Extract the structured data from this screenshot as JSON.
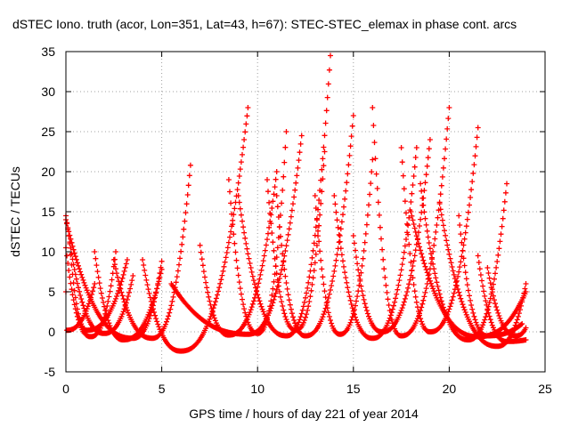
{
  "chart_data": {
    "type": "scatter",
    "title": "dSTEC Iono. truth (acor, Lon=351, Lat=43, h=67): STEC-STEC_elemax in phase cont. arcs",
    "xlabel": "GPS time / hours of day 221 of year 2014",
    "ylabel": "dSTEC  / TECUs",
    "xlim": [
      0,
      25
    ],
    "ylim": [
      -5,
      35
    ],
    "x_ticks": [
      "0",
      "5",
      "10",
      "15",
      "20",
      "25"
    ],
    "y_ticks": [
      "-5",
      "0",
      "5",
      "10",
      "15",
      "20",
      "25",
      "30",
      "35"
    ],
    "grid": true,
    "marker": "+",
    "color": "#ff0000",
    "arcs": [
      {
        "start": 0.0,
        "end": 1.5,
        "min_x": 0.05,
        "min_y": 0.2,
        "peak_left": 5.0,
        "peak_right": 6.0
      },
      {
        "start": 0.0,
        "end": 2.6,
        "min_x": 1.3,
        "min_y": -0.6,
        "peak_left": 10.5,
        "peak_right": 10.0
      },
      {
        "start": 0.2,
        "end": 3.2,
        "min_x": 1.1,
        "min_y": 0.2,
        "peak_left": 11.0,
        "peak_right": 9.0
      },
      {
        "start": 0.0,
        "end": 3.5,
        "min_x": 2.0,
        "min_y": -0.2,
        "peak_left": 14.5,
        "peak_right": 7.0
      },
      {
        "start": 0.0,
        "end": 5.0,
        "min_x": 3.5,
        "min_y": -0.8,
        "peak_left": 14.0,
        "peak_right": 8.8
      },
      {
        "start": 1.5,
        "end": 5.0,
        "min_x": 3.0,
        "min_y": -1.0,
        "peak_left": 10.0,
        "peak_right": 7.8
      },
      {
        "start": 2.5,
        "end": 6.5,
        "min_x": 4.5,
        "min_y": -0.8,
        "peak_left": 9.0,
        "peak_right": 20.8
      },
      {
        "start": 4.0,
        "end": 9.5,
        "min_x": 6.0,
        "min_y": -2.4,
        "peak_left": 9.0,
        "peak_right": 28.0
      },
      {
        "start": 5.5,
        "end": 12.3,
        "min_x": 9.5,
        "min_y": -0.3,
        "peak_left": 6.0,
        "peak_right": 24.5
      },
      {
        "start": 7.0,
        "end": 11.0,
        "min_x": 8.5,
        "min_y": -0.4,
        "peak_left": 10.8,
        "peak_right": 20.0
      },
      {
        "start": 8.5,
        "end": 11.5,
        "min_x": 10.0,
        "min_y": -0.2,
        "peak_left": 19.0,
        "peak_right": 25.0
      },
      {
        "start": 9.0,
        "end": 13.8,
        "min_x": 11.5,
        "min_y": -0.5,
        "peak_left": 17.0,
        "peak_right": 34.5
      },
      {
        "start": 10.5,
        "end": 13.5,
        "min_x": 12.0,
        "min_y": 0.2,
        "peak_left": 19.0,
        "peak_right": 22.5
      },
      {
        "start": 11.0,
        "end": 15.0,
        "min_x": 12.5,
        "min_y": -0.5,
        "peak_left": 17.0,
        "peak_right": 27.0
      },
      {
        "start": 13.0,
        "end": 16.0,
        "min_x": 14.3,
        "min_y": -0.3,
        "peak_left": 17.0,
        "peak_right": 21.5
      },
      {
        "start": 14.0,
        "end": 18.3,
        "min_x": 16.0,
        "min_y": -0.8,
        "peak_left": 17.0,
        "peak_right": 23.0
      },
      {
        "start": 15.0,
        "end": 19.0,
        "min_x": 16.5,
        "min_y": 0.0,
        "peak_left": 12.0,
        "peak_right": 24.0
      },
      {
        "start": 16.0,
        "end": 20.0,
        "min_x": 17.5,
        "min_y": -0.5,
        "peak_left": 28.0,
        "peak_right": 28.0
      },
      {
        "start": 17.5,
        "end": 21.5,
        "min_x": 19.0,
        "min_y": 0.0,
        "peak_left": 23.0,
        "peak_right": 25.5
      },
      {
        "start": 18.5,
        "end": 23.0,
        "min_x": 21.0,
        "min_y": -1.0,
        "peak_left": 18.5,
        "peak_right": 18.5
      },
      {
        "start": 19.5,
        "end": 24.0,
        "min_x": 22.5,
        "min_y": -1.8,
        "peak_left": 16.0,
        "peak_right": 6.0
      },
      {
        "start": 20.5,
        "end": 23.8,
        "min_x": 22.0,
        "min_y": -0.5,
        "peak_left": 14.5,
        "peak_right": 1.0
      },
      {
        "start": 21.5,
        "end": 24.0,
        "min_x": 23.0,
        "min_y": -1.2,
        "peak_left": 9.5,
        "peak_right": -1.0
      },
      {
        "start": 22.0,
        "end": 24.0,
        "min_x": 23.5,
        "min_y": -0.5,
        "peak_left": 8.0,
        "peak_right": 0.5
      },
      {
        "start": 18.0,
        "end": 24.0,
        "min_x": 21.5,
        "min_y": -0.6,
        "peak_left": 15.0,
        "peak_right": 5.0
      }
    ]
  }
}
